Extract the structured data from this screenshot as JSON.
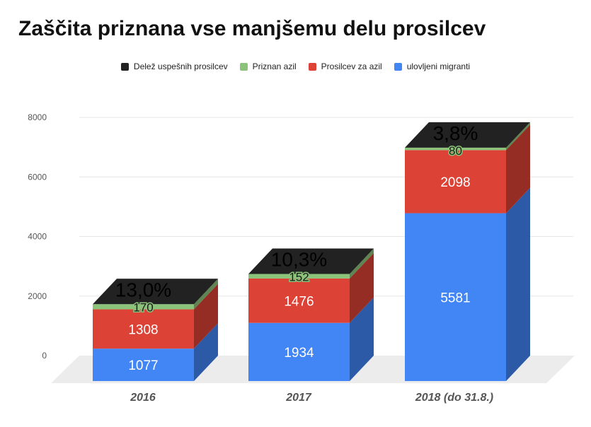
{
  "title": "Zaščita priznana vse manjšemu delu prosilcev",
  "colors": {
    "delez": "#222222",
    "priznan": "#8bc37a",
    "prosilci": "#dc4236",
    "migranti": "#4285f4"
  },
  "chart_data": {
    "type": "bar",
    "stacked": true,
    "three_d": true,
    "title": "Zaščita priznana vse manjšemu delu prosilcev",
    "categories": [
      "2016",
      "2017",
      "2018 (do 31.8.)"
    ],
    "series": [
      {
        "name": "ulovljeni migranti",
        "values": [
          1077,
          1934,
          5581
        ],
        "labels": [
          "1077",
          "1934",
          "5581"
        ],
        "color": "#4285f4"
      },
      {
        "name": "Prosilcev za azil",
        "values": [
          1308,
          1476,
          2098
        ],
        "labels": [
          "1308",
          "1476",
          "2098"
        ],
        "color": "#dc4236"
      },
      {
        "name": "Priznan azil",
        "values": [
          170,
          152,
          80
        ],
        "labels": [
          "170",
          "152",
          "80"
        ],
        "color": "#8bc37a"
      }
    ],
    "top_series": {
      "name": "Delež uspešnih prosilcev",
      "labels": [
        "13,0%",
        "10,3%",
        "3,8%"
      ],
      "color": "#222222"
    },
    "legend": [
      "Delež uspešnih prosilcev",
      "Priznan azil",
      "Prosilcev za azil",
      "ulovljeni migranti"
    ],
    "legend_position": "top",
    "yticks": [
      "0",
      "2000",
      "4000",
      "6000",
      "8000"
    ],
    "ylim": [
      0,
      8000
    ],
    "grid": true
  }
}
